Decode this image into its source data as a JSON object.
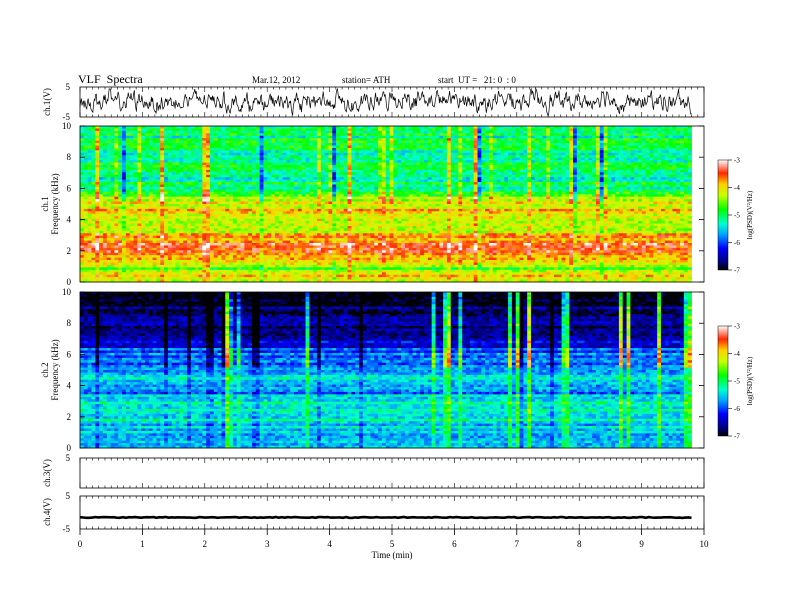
{
  "header": {
    "title": "VLF  Spectra",
    "date": "Mar.12, 2012",
    "station": "station= ATH",
    "start": "start  UT =   21: 0  : 0"
  },
  "chart_data": [
    {
      "type": "line",
      "panel": "ch1-waveform",
      "ylabel": "ch.1(V)",
      "ylim": [
        -5,
        5
      ],
      "yticks": [
        "5",
        "-5"
      ],
      "xlim": [
        0,
        10
      ]
    },
    {
      "type": "heatmap",
      "panel": "ch1-spectrogram",
      "ylabel": "Frequency (kHz)",
      "ylabel_ch": "ch.1",
      "ylim": [
        0,
        10
      ],
      "yticks": [
        "0",
        "2",
        "4",
        "6",
        "8",
        "10"
      ],
      "xlim": [
        0,
        9.8
      ],
      "colorbar": {
        "label": "log(PSD)(V²/Hz)",
        "ticks": [
          "-3",
          "-4",
          "-5",
          "-6",
          "-7"
        ],
        "range": [
          -7,
          -3
        ]
      },
      "frequency_profile": [
        {
          "f": 0.25,
          "v": -4.4
        },
        {
          "f": 0.5,
          "v": -3.9
        },
        {
          "f": 0.8,
          "v": -4.8
        },
        {
          "f": 1.2,
          "v": -4.0
        },
        {
          "f": 1.6,
          "v": -3.6
        },
        {
          "f": 2.0,
          "v": -3.5
        },
        {
          "f": 2.5,
          "v": -3.6
        },
        {
          "f": 3.0,
          "v": -3.9
        },
        {
          "f": 3.5,
          "v": -4.2
        },
        {
          "f": 4.0,
          "v": -4.1
        },
        {
          "f": 4.5,
          "v": -3.9
        },
        {
          "f": 5.0,
          "v": -4.0
        },
        {
          "f": 5.5,
          "v": -4.6
        },
        {
          "f": 6.0,
          "v": -5.0
        },
        {
          "f": 6.5,
          "v": -5.2
        },
        {
          "f": 7.0,
          "v": -5.1
        },
        {
          "f": 8.0,
          "v": -5.0
        },
        {
          "f": 9.0,
          "v": -5.1
        },
        {
          "f": 10.0,
          "v": -5.0
        }
      ]
    },
    {
      "type": "heatmap",
      "panel": "ch2-spectrogram",
      "ylabel": "Frequency (kHz)",
      "ylabel_ch": "ch.2",
      "ylim": [
        0,
        10
      ],
      "yticks": [
        "0",
        "2",
        "4",
        "6",
        "8",
        "10"
      ],
      "xlim": [
        0,
        9.8
      ],
      "colorbar": {
        "label": "log(PSD)(V²/Hz)",
        "ticks": [
          "-3",
          "-4",
          "-5",
          "-6",
          "-7"
        ],
        "range": [
          -7,
          -3
        ]
      },
      "frequency_profile": [
        {
          "f": 0.25,
          "v": -5.4
        },
        {
          "f": 0.8,
          "v": -5.6
        },
        {
          "f": 1.5,
          "v": -5.4
        },
        {
          "f": 2.0,
          "v": -5.3
        },
        {
          "f": 2.5,
          "v": -5.5
        },
        {
          "f": 3.0,
          "v": -5.3
        },
        {
          "f": 3.5,
          "v": -5.8
        },
        {
          "f": 4.0,
          "v": -5.5
        },
        {
          "f": 4.5,
          "v": -5.4
        },
        {
          "f": 5.0,
          "v": -5.6
        },
        {
          "f": 5.5,
          "v": -6.0
        },
        {
          "f": 6.0,
          "v": -5.7
        },
        {
          "f": 6.5,
          "v": -6.2
        },
        {
          "f": 7.0,
          "v": -6.6
        },
        {
          "f": 8.0,
          "v": -6.7
        },
        {
          "f": 9.0,
          "v": -6.8
        },
        {
          "f": 10.0,
          "v": -6.8
        }
      ]
    },
    {
      "type": "line",
      "panel": "ch3-waveform",
      "ylabel": "ch.3(V)",
      "ylim": [
        -5,
        5
      ],
      "yticks": [
        "5"
      ],
      "xlim": [
        0,
        10
      ]
    },
    {
      "type": "line",
      "panel": "ch4-waveform",
      "ylabel": "ch.4(V)",
      "ylim": [
        -5,
        5
      ],
      "yticks": [
        "5",
        "-5"
      ],
      "xlim": [
        0,
        10
      ],
      "level": -1.5,
      "xticks": [
        "0",
        "1",
        "2",
        "3",
        "4",
        "5",
        "6",
        "7",
        "8",
        "9",
        "10"
      ],
      "xlabel": "Time  (min)"
    }
  ]
}
